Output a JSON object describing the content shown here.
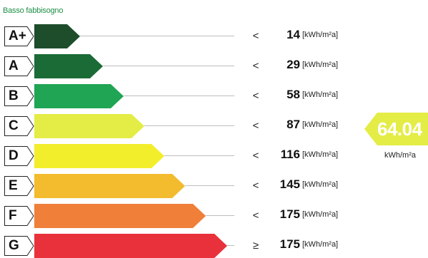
{
  "header": {
    "caption": "Basso fabbisogno"
  },
  "classes": [
    {
      "letter": "A+",
      "symbol": "<",
      "value": "14",
      "unit": "[kWh/m²a]",
      "color": "#1e4d2b"
    },
    {
      "letter": "A",
      "symbol": "<",
      "value": "29",
      "unit": "[kWh/m²a]",
      "color": "#1a6b35"
    },
    {
      "letter": "B",
      "symbol": "<",
      "value": "58",
      "unit": "[kWh/m²a]",
      "color": "#1fa553"
    },
    {
      "letter": "C",
      "symbol": "<",
      "value": "87",
      "unit": "[kWh/m²a]",
      "color": "#e4ec46"
    },
    {
      "letter": "D",
      "symbol": "<",
      "value": "116",
      "unit": "[kWh/m²a]",
      "color": "#f3ee2c"
    },
    {
      "letter": "E",
      "symbol": "<",
      "value": "145",
      "unit": "[kWh/m²a]",
      "color": "#f3bb2e"
    },
    {
      "letter": "F",
      "symbol": "<",
      "value": "175",
      "unit": "[kWh/m²a]",
      "color": "#f07f3a"
    },
    {
      "letter": "G",
      "symbol": "≥",
      "value": "175",
      "unit": "[kWh/m²a]",
      "color": "#e8313a"
    }
  ],
  "indicator": {
    "value": "64.04",
    "unit": "kWh/m²a",
    "class": "C",
    "color": "#e4ec46"
  }
}
